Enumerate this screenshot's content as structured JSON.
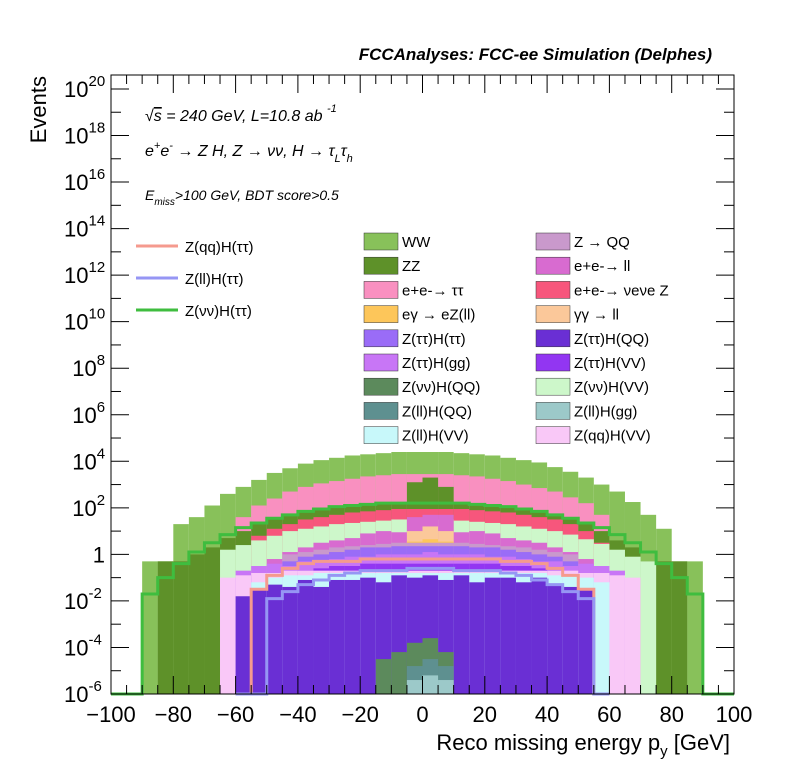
{
  "chart_data": {
    "type": "bar",
    "stacked": true,
    "title": "FCCAnalyses: FCC-ee Simulation (Delphes)",
    "xlabel": "Reco missing energy p_y [GeV]",
    "ylabel": "Events",
    "xlim": [
      -100,
      100
    ],
    "ylim_log10": [
      -6,
      20.6
    ],
    "log_y": true,
    "bin_width": 5,
    "annotations": [
      "√s = 240 GeV, L=10.8 ab^-1",
      "e+e- → Z H, Z → νν, H → τ_L τ_h",
      "E_miss>100 GeV, BDT score>0.5"
    ],
    "x_ticks": [
      "−100",
      "−80",
      "−60",
      "−40",
      "−20",
      "0",
      "20",
      "40",
      "60",
      "80",
      "100"
    ],
    "y_ticks": [
      {
        "exp": -6,
        "label": "10^-6"
      },
      {
        "exp": -4,
        "label": "10^-4"
      },
      {
        "exp": -2,
        "label": "10^-2"
      },
      {
        "exp": 0,
        "label": "1"
      },
      {
        "exp": 2,
        "label": "10^2"
      },
      {
        "exp": 4,
        "label": "10^4"
      },
      {
        "exp": 6,
        "label": "10^6"
      },
      {
        "exp": 8,
        "label": "10^8"
      },
      {
        "exp": 10,
        "label": "10^10"
      },
      {
        "exp": 12,
        "label": "10^12"
      },
      {
        "exp": 14,
        "label": "10^14"
      },
      {
        "exp": 16,
        "label": "10^16"
      },
      {
        "exp": 18,
        "label": "10^18"
      },
      {
        "exp": 20,
        "label": "10^20"
      }
    ],
    "stack_layers": [
      {
        "name": "WW",
        "color": "#88c15a",
        "x": [
          -90,
          -85,
          -80,
          -75,
          -70,
          -65,
          -60,
          -55,
          -50,
          -45,
          -40,
          -35,
          -30,
          -25,
          -20,
          -15,
          -10,
          -5,
          0,
          5,
          10,
          15,
          20,
          25,
          30,
          35,
          40,
          45,
          50,
          55,
          60,
          65,
          70,
          75,
          80,
          85
        ],
        "log10": [
          -0.3,
          -0.3,
          1.3,
          1.6,
          2.1,
          2.6,
          2.9,
          3.2,
          3.5,
          3.7,
          3.9,
          4.05,
          4.15,
          4.25,
          4.3,
          4.35,
          4.4,
          4.4,
          4.4,
          4.4,
          4.35,
          4.3,
          4.25,
          4.15,
          4.05,
          3.95,
          3.75,
          3.55,
          3.3,
          3.0,
          2.7,
          2.25,
          1.7,
          1.1,
          -0.3,
          -0.3
        ]
      },
      {
        "name": "e+e- → ττ",
        "color": "#f990c0",
        "x": [
          -60,
          -55,
          -50,
          -45,
          -40,
          -35,
          -30,
          -25,
          -20,
          -15,
          -10,
          -5,
          0,
          5,
          10,
          15,
          20,
          25,
          30,
          35,
          40,
          45,
          50,
          55
        ],
        "log10": [
          1.6,
          2.1,
          2.4,
          2.7,
          2.9,
          3.05,
          3.15,
          3.25,
          3.35,
          3.4,
          3.45,
          3.45,
          3.45,
          3.45,
          3.4,
          3.35,
          3.25,
          3.15,
          3.0,
          2.85,
          2.7,
          2.45,
          2.2,
          1.7
        ]
      },
      {
        "name": "ZZ",
        "color": "#5e9129",
        "x": [
          -85,
          -80,
          -75,
          -70,
          -65,
          -60,
          -55,
          -50,
          -45,
          -40,
          -35,
          -30,
          -25,
          -20,
          -15,
          -10,
          -5,
          0,
          5,
          10,
          15,
          20,
          25,
          30,
          35,
          40,
          45,
          50,
          55,
          60,
          65,
          70,
          75,
          80
        ],
        "log10": [
          -0.3,
          -0.3,
          0.0,
          0.3,
          0.7,
          1.0,
          1.3,
          1.5,
          1.7,
          1.85,
          1.95,
          2.05,
          2.1,
          2.2,
          2.2,
          2.2,
          3.1,
          3.3,
          2.9,
          2.2,
          2.2,
          2.1,
          2.05,
          1.95,
          1.85,
          1.75,
          1.55,
          1.35,
          1.0,
          0.6,
          0.3,
          -0.3,
          -0.3,
          -0.3
        ]
      },
      {
        "name": "e+e- → νeνe Z",
        "color": "#f7567c",
        "x": [
          -55,
          -50,
          -45,
          -40,
          -35,
          -30,
          -25,
          -20,
          -15,
          -10,
          -5,
          0,
          5,
          10,
          15,
          20,
          25,
          30,
          35,
          40,
          45,
          50,
          55
        ],
        "log10": [
          0.8,
          1.1,
          1.3,
          1.5,
          1.6,
          1.7,
          1.8,
          1.85,
          1.9,
          1.95,
          1.95,
          1.95,
          1.95,
          1.95,
          1.9,
          1.85,
          1.8,
          1.7,
          1.6,
          1.5,
          1.3,
          1.0,
          0.5
        ]
      },
      {
        "name": "Z(νν)H(VV)",
        "color": "#cdf7ca",
        "x": [
          -65,
          -60,
          -55,
          -50,
          -45,
          -40,
          -35,
          -30,
          -25,
          -20,
          -15,
          -10,
          -5,
          0,
          5,
          10,
          15,
          20,
          25,
          30,
          35,
          40,
          45,
          50,
          55,
          60,
          65,
          70
        ],
        "log10": [
          0.2,
          0.4,
          0.6,
          0.8,
          1.0,
          1.1,
          1.2,
          1.3,
          1.35,
          1.4,
          1.45,
          1.5,
          1.5,
          1.5,
          1.5,
          1.45,
          1.4,
          1.35,
          1.3,
          1.2,
          1.1,
          1.0,
          0.85,
          0.65,
          0.45,
          0.2,
          -0.1,
          -0.3
        ]
      },
      {
        "name": "e+e- → ll",
        "color": "#d86bd0",
        "x": [
          -50,
          -45,
          -40,
          -35,
          -30,
          -25,
          -20,
          -15,
          -10,
          -5,
          0,
          5,
          10,
          15,
          20,
          25,
          30,
          35,
          40,
          45,
          50
        ],
        "log10": [
          -0.2,
          0.1,
          0.3,
          0.5,
          0.6,
          0.7,
          0.9,
          1.0,
          0.95,
          1.6,
          1.7,
          1.7,
          0.95,
          1.0,
          0.9,
          0.7,
          0.6,
          0.5,
          0.3,
          0.1,
          -0.2
        ]
      },
      {
        "name": "γγ → ll",
        "color": "#fbc89a",
        "x": [
          -5,
          0,
          5
        ],
        "log10": [
          1.0,
          1.2,
          1.0
        ]
      },
      {
        "name": "eγ → eZ(ll)",
        "color": "#fdc65a",
        "x": [
          -5,
          0,
          5
        ],
        "log10": [
          0.55,
          0.65,
          0.55
        ]
      },
      {
        "name": "Z → QQ",
        "color": "#c999cc",
        "x": [
          -45,
          -40,
          -35,
          -30,
          -25,
          -20,
          -15,
          -10,
          -5,
          0,
          5,
          10,
          15,
          20,
          25,
          30,
          35,
          40,
          45
        ],
        "log10": [
          0.0,
          0.1,
          0.2,
          0.3,
          0.35,
          0.4,
          0.45,
          0.5,
          0.5,
          0.5,
          0.5,
          0.5,
          0.45,
          0.4,
          0.35,
          0.3,
          0.2,
          0.1,
          0.0
        ]
      },
      {
        "name": "Z(ττ)H(ττ)",
        "color": "#9a6cf7",
        "x": [
          -45,
          -40,
          -35,
          -30,
          -25,
          -20,
          -15,
          -10,
          -5,
          0,
          5,
          10,
          15,
          20,
          25,
          30,
          35,
          40,
          45
        ],
        "log10": [
          -0.3,
          -0.1,
          0.0,
          0.1,
          0.2,
          0.3,
          0.3,
          0.35,
          0.35,
          0.35,
          0.35,
          0.35,
          0.3,
          0.3,
          0.2,
          0.1,
          0.0,
          -0.1,
          -0.3
        ]
      },
      {
        "name": "Z(ττ)H(gg)",
        "color": "#c876f6",
        "x": [
          -60,
          -55,
          -50,
          -45,
          -40,
          -35,
          -30,
          -25,
          -20,
          -15,
          -10,
          -5,
          0,
          5,
          10,
          15,
          20,
          25,
          30,
          35,
          40,
          45,
          50,
          55,
          60
        ],
        "log10": [
          -0.7,
          -0.5,
          -0.4,
          -0.5,
          -0.3,
          -0.3,
          -0.2,
          -0.1,
          -0.1,
          0.0,
          0.0,
          0.0,
          0.1,
          0.0,
          0.0,
          0.0,
          -0.1,
          -0.1,
          -0.2,
          -0.3,
          -0.3,
          -0.5,
          -0.4,
          -0.5,
          -0.7
        ]
      },
      {
        "name": "Z(ττ)H(VV)",
        "color": "#9236f2",
        "x": [
          -60,
          -55,
          -50,
          -45,
          -40,
          -35,
          -30,
          -25,
          -20,
          -15,
          -10,
          -5,
          0,
          5,
          10,
          15,
          20,
          25,
          30,
          35,
          40,
          45,
          50,
          55,
          60
        ],
        "log10": [
          -1.0,
          -0.9,
          -0.8,
          -0.8,
          -0.7,
          -0.6,
          -0.5,
          -0.5,
          -0.4,
          -0.4,
          -0.4,
          -0.4,
          -0.4,
          -0.4,
          -0.4,
          -0.4,
          -0.4,
          -0.5,
          -0.5,
          -0.6,
          -0.7,
          -0.8,
          -0.8,
          -0.9,
          -1.0
        ]
      },
      {
        "name": "Z(qq)H(VV)",
        "color": "#f9c8f7",
        "x": [
          -65,
          -60,
          -55,
          -50,
          -45,
          -40,
          -35,
          -30,
          -25,
          -20,
          -15,
          -10,
          -5,
          0,
          5,
          10,
          15,
          20,
          25,
          30,
          35,
          40,
          45,
          50,
          55,
          60,
          65
        ],
        "log10": [
          -1.0,
          -0.9,
          -0.8,
          -0.8,
          -0.7,
          -0.7,
          -0.7,
          -0.7,
          -0.7,
          -0.7,
          -0.7,
          -0.7,
          -0.7,
          -0.7,
          -0.7,
          -0.7,
          -0.7,
          -0.7,
          -0.7,
          -0.7,
          -0.7,
          -0.7,
          -0.7,
          -0.8,
          -0.8,
          -0.9,
          -1.0
        ]
      },
      {
        "name": "Z(ll)H(VV)",
        "color": "#c8f8fa",
        "x": [
          -55,
          -50,
          -45,
          -40,
          -35,
          -30,
          -25,
          -20,
          -15,
          -10,
          -5,
          0,
          5,
          10,
          15,
          20,
          25,
          30,
          35,
          40,
          45,
          50,
          55
        ],
        "log10": [
          -1.2,
          -1.0,
          -0.9,
          -0.9,
          -0.8,
          -0.8,
          -0.8,
          -0.8,
          -0.8,
          -0.8,
          -0.8,
          -0.8,
          -0.8,
          -0.8,
          -0.8,
          -0.8,
          -0.8,
          -0.8,
          -0.8,
          -0.9,
          -0.9,
          -1.0,
          -1.2
        ]
      },
      {
        "name": "Z(ττ)H(QQ)",
        "color": "#6a2fd4",
        "x": [
          -60,
          -55,
          -50,
          -45,
          -40,
          -35,
          -30,
          -25,
          -20,
          -15,
          -10,
          -5,
          0,
          5,
          10,
          15,
          20,
          25,
          30,
          35,
          40,
          45,
          50
        ],
        "log10": [
          -1.8,
          -1.5,
          -1.3,
          -1.4,
          -1.1,
          -1.4,
          -1.1,
          -1.1,
          -1.0,
          -1.2,
          -0.9,
          -1.0,
          -0.9,
          -1.1,
          -0.9,
          -1.2,
          -1.0,
          -1.0,
          -1.2,
          -1.0,
          -1.3,
          -1.4,
          -1.5
        ]
      },
      {
        "name": "Z(νν)H(QQ)",
        "color": "#5c8a5c",
        "x": [
          -15,
          -10,
          -5,
          0,
          5
        ],
        "log10": [
          -4.5,
          -4.2,
          -3.8,
          -3.6,
          -4.2
        ]
      },
      {
        "name": "Z(ll)H(QQ)",
        "color": "#5e9090",
        "x": [
          -5,
          0,
          5
        ],
        "log10": [
          -4.8,
          -4.5,
          -4.8
        ]
      },
      {
        "name": "Z(ll)H(gg)",
        "color": "#9cc9c9",
        "x": [
          -5,
          0,
          5
        ],
        "log10": [
          -5.4,
          -5.2,
          -5.4
        ]
      }
    ],
    "series": [
      {
        "name": "Z(qq)H(ττ)",
        "color": "#f59a8e",
        "type": "step",
        "x": [
          -60,
          -55,
          -50,
          -45,
          -40,
          -35,
          -30,
          -25,
          -20,
          -15,
          -10,
          -5,
          0,
          5,
          10,
          15,
          20,
          25,
          30,
          35,
          40,
          45,
          50,
          55
        ],
        "log10": [
          -6,
          -1.5,
          -0.9,
          -0.6,
          -0.4,
          -0.3,
          -0.3,
          -0.3,
          -0.2,
          -0.2,
          -0.2,
          -0.2,
          -0.2,
          -0.2,
          -0.2,
          -0.2,
          -0.2,
          -0.3,
          -0.3,
          -0.4,
          -0.6,
          -0.9,
          -1.5,
          -6
        ]
      },
      {
        "name": "Z(ll)H(ττ)",
        "color": "#9696f4",
        "type": "step",
        "x": [
          -60,
          -55,
          -50,
          -45,
          -40,
          -35,
          -30,
          -25,
          -20,
          -15,
          -10,
          -5,
          0,
          5,
          10,
          15,
          20,
          25,
          30,
          35,
          40,
          45,
          50,
          55
        ],
        "log10": [
          -6,
          -6,
          -1.9,
          -1.6,
          -1.3,
          -1.1,
          -0.9,
          -0.8,
          -0.7,
          -0.7,
          -0.7,
          -0.6,
          -0.6,
          -0.6,
          -0.7,
          -0.7,
          -0.7,
          -0.8,
          -0.9,
          -1.1,
          -1.3,
          -1.6,
          -1.9,
          -6
        ]
      },
      {
        "name": "Z(νν)H(ττ)",
        "color": "#3fbd3f",
        "type": "step",
        "x": [
          -100,
          -95,
          -90,
          -85,
          -80,
          -75,
          -70,
          -65,
          -60,
          -55,
          -50,
          -45,
          -40,
          -35,
          -30,
          -25,
          -20,
          -15,
          -10,
          -5,
          0,
          5,
          10,
          15,
          20,
          25,
          30,
          35,
          40,
          45,
          50,
          55,
          60,
          65,
          70,
          75,
          80,
          85,
          90,
          95
        ],
        "log10": [
          -6,
          -6,
          -1.7,
          -1.0,
          -0.4,
          0.1,
          0.5,
          0.85,
          1.15,
          1.35,
          1.55,
          1.7,
          1.85,
          1.95,
          2.05,
          2.1,
          2.15,
          2.2,
          2.2,
          2.2,
          2.2,
          2.2,
          2.2,
          2.15,
          2.1,
          2.05,
          1.95,
          1.85,
          1.7,
          1.55,
          1.35,
          1.15,
          0.85,
          0.5,
          0.1,
          -0.4,
          -1.0,
          -1.7,
          -6,
          -6
        ]
      }
    ],
    "legend": {
      "lines": [
        "Z(qq)H(ττ)",
        "Z(ll)H(ττ)",
        "Z(νν)H(ττ)"
      ],
      "col1": [
        "WW",
        "ZZ",
        "e+e-→ ττ",
        "eγ → eZ(ll)",
        "Z(ττ)H(ττ)",
        "Z(ττ)H(gg)",
        "Z(νν)H(QQ)",
        "Z(ll)H(QQ)",
        "Z(ll)H(VV)"
      ],
      "col1_colors": [
        "#88c15a",
        "#5e9129",
        "#f990c0",
        "#fdc65a",
        "#9a6cf7",
        "#c876f6",
        "#5c8a5c",
        "#5e9090",
        "#c8f8fa"
      ],
      "col2": [
        "Z → QQ",
        "e+e-→ ll",
        "e+e-→ νeνe Z",
        "γγ → ll",
        "Z(ττ)H(QQ)",
        "Z(ττ)H(VV)",
        "Z(νν)H(VV)",
        "Z(ll)H(gg)",
        "Z(qq)H(VV)"
      ],
      "col2_colors": [
        "#c999cc",
        "#d86bd0",
        "#f7567c",
        "#fbc89a",
        "#6a2fd4",
        "#9236f2",
        "#cdf7ca",
        "#9cc9c9",
        "#f9c8f7"
      ]
    }
  }
}
